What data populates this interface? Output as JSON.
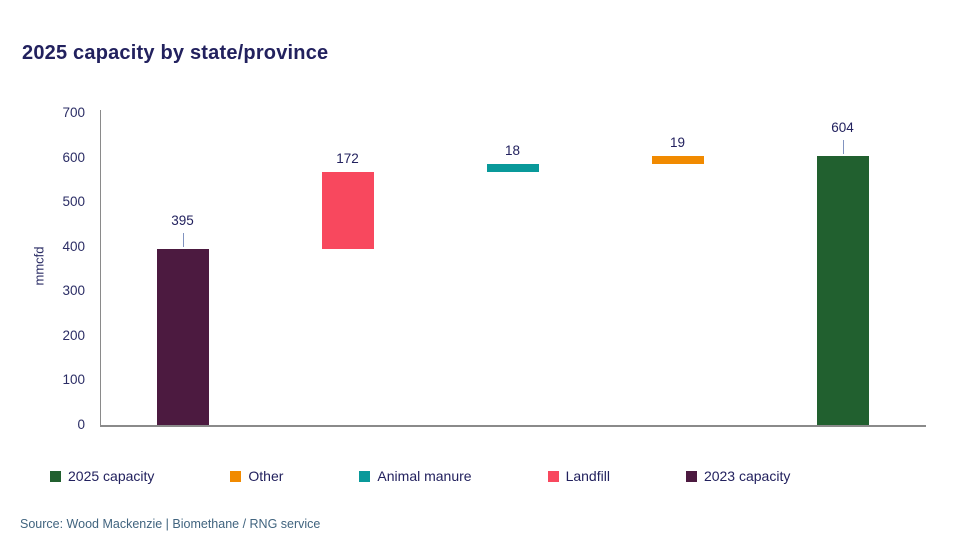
{
  "title": "2025 capacity by state/province",
  "source": "Source: Wood Mackenzie | Biomethane / RNG service",
  "colors": {
    "title_text": "#22215e",
    "tick_text": "#2b2d65",
    "axis_line": "#8a8a8a",
    "label_connector": "#8193c0",
    "source_text": "#41647f",
    "background": "#ffffff"
  },
  "chart_data": {
    "type": "bar",
    "subtype": "waterfall",
    "title": "2025 capacity by state/province",
    "xlabel": "",
    "ylabel": "mmcfd",
    "ylim": [
      0,
      700
    ],
    "yticks": [
      0,
      100,
      200,
      300,
      400,
      500,
      600,
      700
    ],
    "grid": false,
    "legend_position": "bottom",
    "series": [
      {
        "name": "2023 capacity",
        "color": "#4c1a40",
        "start": 0,
        "end": 395,
        "value": 395,
        "label": "395",
        "label_connector": true
      },
      {
        "name": "Landfill",
        "color": "#f8485e",
        "start": 395,
        "end": 567,
        "value": 172,
        "label": "172",
        "label_connector": false
      },
      {
        "name": "Animal manure",
        "color": "#09999a",
        "start": 567,
        "end": 585,
        "value": 18,
        "label": "18",
        "label_connector": false
      },
      {
        "name": "Other",
        "color": "#f18a00",
        "start": 585,
        "end": 604,
        "value": 19,
        "label": "19",
        "label_connector": false
      },
      {
        "name": "2025 capacity",
        "color": "#21602f",
        "start": 0,
        "end": 604,
        "value": 604,
        "label": "604",
        "label_connector": true
      }
    ],
    "legend": [
      {
        "label": "2025 capacity",
        "color": "#21602f"
      },
      {
        "label": "Other",
        "color": "#f18a00"
      },
      {
        "label": "Animal manure",
        "color": "#09999a"
      },
      {
        "label": "Landfill",
        "color": "#f8485e"
      },
      {
        "label": "2023 capacity",
        "color": "#4c1a40"
      }
    ]
  }
}
